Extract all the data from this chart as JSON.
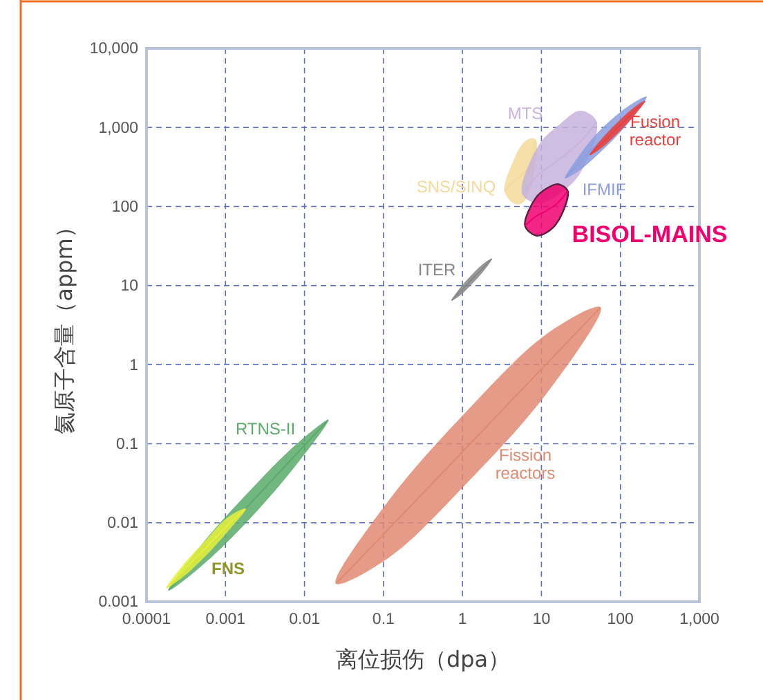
{
  "chart_data": {
    "type": "line",
    "xlabel": "离位损伤（dpa）",
    "ylabel": "氦原子含量（appm）",
    "log": "xy",
    "grid": true,
    "line_style": "solid",
    "xlim": [
      0.0001,
      1000
    ],
    "xticks": [
      0.0001,
      0.001,
      0.01,
      0.1,
      1,
      10,
      100,
      {
        "value": 1000,
        "label": "1,000"
      }
    ],
    "ylim": [
      0.001,
      10000
    ],
    "yticks": [
      0.001,
      0.01,
      0.1,
      1,
      10,
      100,
      {
        "value": 1000,
        "label": "1,000"
      },
      {
        "value": 10000,
        "label": "10,000"
      }
    ],
    "series": [
      {
        "name": "Fission reactors",
        "color": "#e08a72",
        "x": [
          0.025,
          0.116,
          1.18,
          12,
          56
        ],
        "values": [
          0.0017,
          0.0083,
          0.094,
          1.06,
          5.3
        ],
        "lower": [
          0.0017,
          0.0036,
          0.033,
          0.45,
          5.3
        ],
        "upper": [
          0.0017,
          0.019,
          0.27,
          2.5,
          5.3
        ]
      },
      {
        "name": "RTNS-II",
        "color": "#5aaa6a",
        "x": [
          0.00019,
          0.00049,
          0.002,
          0.008,
          0.02
        ],
        "values": [
          0.0014,
          0.0038,
          0.017,
          0.075,
          0.2
        ],
        "lower": [
          0.0014,
          0.0028,
          0.011,
          0.055,
          0.2
        ],
        "upper": [
          0.0014,
          0.0052,
          0.025,
          0.1,
          0.2
        ]
      },
      {
        "name": "FNS",
        "color": "#e6f03c",
        "x": [
          0.00018,
          0.00028,
          0.00056,
          0.0011,
          0.0018
        ],
        "values": [
          0.0015,
          0.0024,
          0.0048,
          0.0096,
          0.015
        ],
        "lower": [
          0.0015,
          0.002,
          0.0038,
          0.008,
          0.015
        ],
        "upper": [
          0.0015,
          0.0028,
          0.006,
          0.012,
          0.015
        ]
      },
      {
        "name": "ITER",
        "color": "#858585",
        "x": [
          0.73,
          0.92,
          1.31,
          1.86,
          2.35
        ],
        "values": [
          6.5,
          8.3,
          11.9,
          17.1,
          21.8
        ],
        "lower": [
          6.5,
          7.4,
          10.4,
          15.3,
          21.8
        ],
        "upper": [
          6.5,
          9.2,
          13.7,
          19.1,
          21.8
        ]
      },
      {
        "name": "SNS/SINQ",
        "color": "#f5d99a",
        "x": [
          3.4,
          4.5,
          5.6,
          7,
          8.5
        ],
        "values": [
          157,
          208,
          250,
          320,
          700
        ],
        "lower": [
          157,
          109,
          109,
          150,
          700
        ],
        "upper": [
          157,
          397,
          600,
          720,
          700
        ]
      },
      {
        "name": "MTS",
        "color": "#c7b3dd",
        "x": [
          5.7,
          9.2,
          16.9,
          31,
          50
        ],
        "values": [
          145,
          255,
          397,
          658,
          1180
        ],
        "lower": [
          145,
          109,
          145,
          265,
          1180
        ],
        "upper": [
          145,
          594,
          1090,
          1630,
          1180
        ]
      },
      {
        "name": "IFMIF",
        "color": "#8a9ee0",
        "x": [
          20,
          28,
          49,
          119,
          213
        ],
        "values": [
          230,
          330,
          594,
          1390,
          2440
        ],
        "lower": [
          230,
          270,
          431,
          1070,
          2440
        ],
        "upper": [
          230,
          400,
          820,
          1790,
          2440
        ]
      },
      {
        "name": "Fusion reactor",
        "color": "#e8403c",
        "x": [
          40.9,
          56.5,
          91.5,
          148,
          205
        ],
        "values": [
          448,
          614,
          984,
          1580,
          2160
        ],
        "lower": [
          448,
          540,
          838,
          1390,
          2160
        ],
        "upper": [
          448,
          698,
          1160,
          1790,
          2160
        ]
      },
      {
        "name": "BISOL-MAINS",
        "color": "#f0006e",
        "x": [
          6.2,
          8.5,
          11.7,
          16.2,
          21.5
        ],
        "values": [
          57,
          75,
          89,
          112,
          157
        ],
        "lower": [
          57,
          43,
          47,
          65,
          157
        ],
        "upper": [
          57,
          129,
          170,
          192,
          157
        ]
      }
    ]
  }
}
